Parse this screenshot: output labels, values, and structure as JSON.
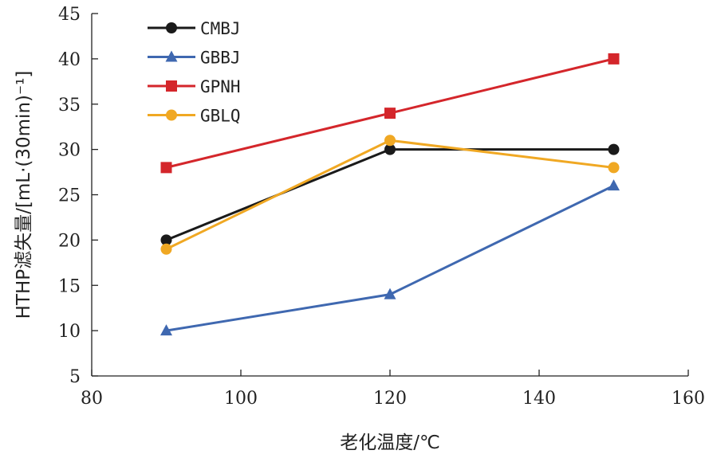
{
  "chart_data": {
    "type": "line",
    "title": "",
    "xlabel": "老化温度/℃",
    "ylabel": "HTHP滤失量/[mL·(30min)⁻¹]",
    "xlim": [
      80,
      160
    ],
    "ylim": [
      5,
      45
    ],
    "xticks": [
      "80",
      "100",
      "120",
      "140",
      "160"
    ],
    "yticks": [
      "5",
      "10",
      "15",
      "20",
      "25",
      "30",
      "35",
      "40",
      "45"
    ],
    "x": [
      90,
      120,
      150
    ],
    "grid": false,
    "legend_position": "top-left",
    "series": [
      {
        "name": "CMBJ",
        "values": [
          20,
          30,
          30
        ],
        "color": "#1a1a1a",
        "marker": "circle"
      },
      {
        "name": "GBBJ",
        "values": [
          10,
          14,
          26
        ],
        "color": "#3f68b0",
        "marker": "triangle"
      },
      {
        "name": "GPNH",
        "values": [
          28,
          34,
          40
        ],
        "color": "#d4262b",
        "marker": "square"
      },
      {
        "name": "GBLQ",
        "values": [
          19,
          31,
          28
        ],
        "color": "#f0a823",
        "marker": "circle"
      }
    ]
  }
}
